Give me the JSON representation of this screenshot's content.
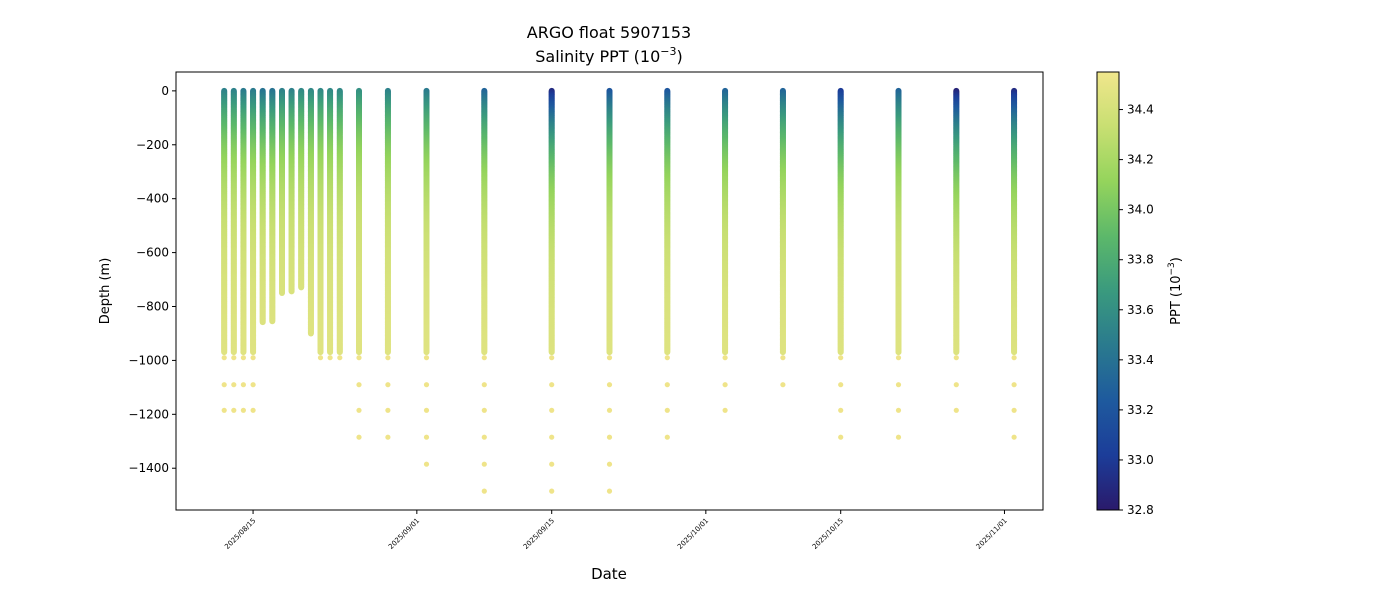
{
  "chart_data": {
    "type": "scatter",
    "title": "ARGO float 5907153",
    "subtitle_prefix": "Salinity PPT (10",
    "subtitle_exp": "−3",
    "subtitle_suffix": ")",
    "xlabel": "Date",
    "ylabel": "Depth (m)",
    "colorbar_label_prefix": "PPT (10",
    "colorbar_label_exp": "−3",
    "colorbar_label_suffix": ")",
    "xlim": [
      "2025-08-07",
      "2025-11-05"
    ],
    "ylim": [
      -1555,
      70
    ],
    "yticks": [
      0,
      -200,
      -400,
      -600,
      -800,
      -1000,
      -1200,
      -1400
    ],
    "ytick_labels": [
      "0",
      "−200",
      "−400",
      "−600",
      "−800",
      "−1000",
      "−1200",
      "−1400"
    ],
    "xticks": [
      "2025-08-15",
      "2025-09-01",
      "2025-09-15",
      "2025-10-01",
      "2025-10-15",
      "2025-11-01"
    ],
    "xtick_labels": [
      "2025/08/15",
      "2025/09/01",
      "2025/09/15",
      "2025/10/01",
      "2025/10/15",
      "2025/11/01"
    ],
    "colorbar_range": [
      32.8,
      34.55
    ],
    "colorbar_ticks": [
      32.8,
      33.0,
      33.2,
      33.4,
      33.6,
      33.8,
      34.0,
      34.2,
      34.4
    ],
    "colorbar_tick_labels": [
      "32.8",
      "33.0",
      "33.2",
      "33.4",
      "33.6",
      "33.8",
      "34.0",
      "34.2",
      "34.4"
    ],
    "colormap": [
      "#2a1a6b",
      "#1c3d99",
      "#1e5a9e",
      "#2a7a8e",
      "#3a9a7e",
      "#5cb86a",
      "#94d45c",
      "#c8df72",
      "#f0e68c"
    ],
    "profiles": [
      {
        "date": "2025-08-12",
        "surface_salinity": 33.5,
        "max_depth": -970,
        "deep_points": [
          -990,
          -1090,
          -1185
        ]
      },
      {
        "date": "2025-08-13",
        "surface_salinity": 33.5,
        "max_depth": -970,
        "deep_points": [
          -990,
          -1090,
          -1185
        ]
      },
      {
        "date": "2025-08-14",
        "surface_salinity": 33.45,
        "max_depth": -970,
        "deep_points": [
          -990,
          -1090,
          -1185
        ]
      },
      {
        "date": "2025-08-15",
        "surface_salinity": 33.45,
        "max_depth": -970,
        "deep_points": [
          -990,
          -1090,
          -1185
        ]
      },
      {
        "date": "2025-08-16",
        "surface_salinity": 33.4,
        "max_depth": -860,
        "deep_points": []
      },
      {
        "date": "2025-08-17",
        "surface_salinity": 33.4,
        "max_depth": -855,
        "deep_points": []
      },
      {
        "date": "2025-08-18",
        "surface_salinity": 33.5,
        "max_depth": -750,
        "deep_points": []
      },
      {
        "date": "2025-08-19",
        "surface_salinity": 33.5,
        "max_depth": -745,
        "deep_points": []
      },
      {
        "date": "2025-08-20",
        "surface_salinity": 33.55,
        "max_depth": -730,
        "deep_points": []
      },
      {
        "date": "2025-08-21",
        "surface_salinity": 33.55,
        "max_depth": -900,
        "deep_points": []
      },
      {
        "date": "2025-08-22",
        "surface_salinity": 33.55,
        "max_depth": -970,
        "deep_points": [
          -990
        ]
      },
      {
        "date": "2025-08-23",
        "surface_salinity": 33.55,
        "max_depth": -970,
        "deep_points": [
          -990
        ]
      },
      {
        "date": "2025-08-24",
        "surface_salinity": 33.55,
        "max_depth": -970,
        "deep_points": [
          -990
        ]
      },
      {
        "date": "2025-08-26",
        "surface_salinity": 33.6,
        "max_depth": -970,
        "deep_points": [
          -990,
          -1090,
          -1185,
          -1285
        ]
      },
      {
        "date": "2025-08-29",
        "surface_salinity": 33.5,
        "max_depth": -970,
        "deep_points": [
          -990,
          -1090,
          -1185,
          -1285
        ]
      },
      {
        "date": "2025-09-02",
        "surface_salinity": 33.45,
        "max_depth": -970,
        "deep_points": [
          -990,
          -1090,
          -1185,
          -1285,
          -1385
        ]
      },
      {
        "date": "2025-09-08",
        "surface_salinity": 33.3,
        "max_depth": -970,
        "deep_points": [
          -990,
          -1090,
          -1185,
          -1285,
          -1385,
          -1485
        ]
      },
      {
        "date": "2025-09-15",
        "surface_salinity": 32.9,
        "max_depth": -970,
        "deep_points": [
          -990,
          -1090,
          -1185,
          -1285,
          -1385,
          -1485
        ]
      },
      {
        "date": "2025-09-21",
        "surface_salinity": 33.2,
        "max_depth": -970,
        "deep_points": [
          -990,
          -1090,
          -1185,
          -1285,
          -1385,
          -1485
        ]
      },
      {
        "date": "2025-09-27",
        "surface_salinity": 33.2,
        "max_depth": -970,
        "deep_points": [
          -990,
          -1090,
          -1185,
          -1285
        ]
      },
      {
        "date": "2025-10-03",
        "surface_salinity": 33.3,
        "max_depth": -970,
        "deep_points": [
          -990,
          -1090,
          -1185
        ]
      },
      {
        "date": "2025-10-09",
        "surface_salinity": 33.3,
        "max_depth": -970,
        "deep_points": [
          -990,
          -1090
        ]
      },
      {
        "date": "2025-10-15",
        "surface_salinity": 33.0,
        "max_depth": -970,
        "deep_points": [
          -990,
          -1090,
          -1185,
          -1285
        ]
      },
      {
        "date": "2025-10-21",
        "surface_salinity": 33.3,
        "max_depth": -970,
        "deep_points": [
          -990,
          -1090,
          -1185,
          -1285
        ]
      },
      {
        "date": "2025-10-27",
        "surface_salinity": 32.85,
        "max_depth": -970,
        "deep_points": [
          -990,
          -1090,
          -1185
        ]
      },
      {
        "date": "2025-11-02",
        "surface_salinity": 32.9,
        "max_depth": -970,
        "deep_points": [
          -990,
          -1090,
          -1185,
          -1285
        ]
      }
    ]
  }
}
